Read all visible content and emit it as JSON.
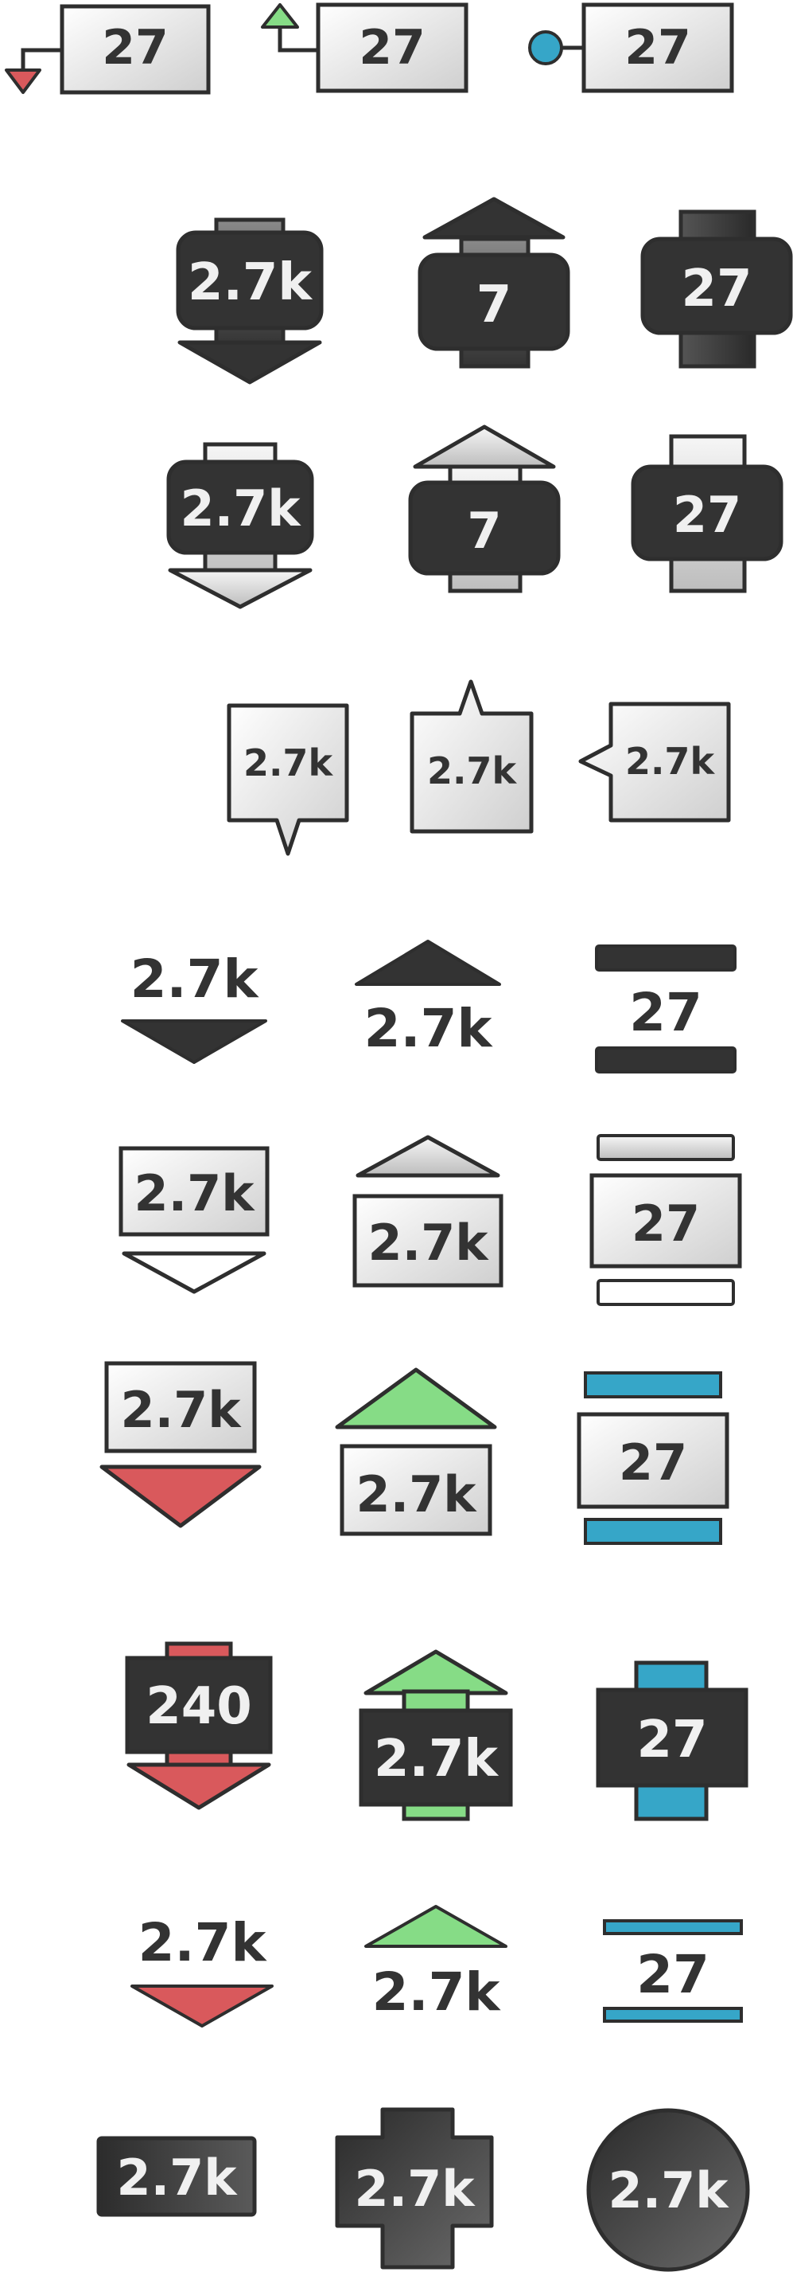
{
  "colors": {
    "stroke": "#2e2e2e",
    "dark": "#333333",
    "light_text": "#f0f0f0",
    "red": "#d9595c",
    "green": "#86dc86",
    "blue": "#36a6c8",
    "pale": "#f7f7f7"
  },
  "rows": [
    {
      "name": "row-callout-small",
      "items": [
        {
          "label": "27",
          "shape": "callout-down-arrow",
          "color": "red"
        },
        {
          "label": "27",
          "shape": "callout-up-arrow",
          "color": "green"
        },
        {
          "label": "27",
          "shape": "callout-dot",
          "color": "blue"
        }
      ]
    },
    {
      "name": "row-dark-arrows",
      "items": [
        {
          "label": "2.7k",
          "shape": "dark-arrow-down"
        },
        {
          "label": "7",
          "shape": "dark-arrow-up"
        },
        {
          "label": "27",
          "shape": "dark-neutral"
        }
      ]
    },
    {
      "name": "row-dark-arrows-light-shaft",
      "items": [
        {
          "label": "2.7k",
          "shape": "light-arrow-down"
        },
        {
          "label": "7",
          "shape": "light-arrow-up"
        },
        {
          "label": "27",
          "shape": "light-neutral"
        }
      ]
    },
    {
      "name": "row-speech-bubbles",
      "items": [
        {
          "label": "2.7k",
          "shape": "bubble-down"
        },
        {
          "label": "2.7k",
          "shape": "bubble-up"
        },
        {
          "label": "2.7k",
          "shape": "bubble-left"
        }
      ]
    },
    {
      "name": "row-plain-markers",
      "items": [
        {
          "label": "2.7k",
          "shape": "plain-down"
        },
        {
          "label": "2.7k",
          "shape": "plain-up"
        },
        {
          "label": "27",
          "shape": "plain-neutral"
        }
      ]
    },
    {
      "name": "row-boxed-outline",
      "items": [
        {
          "label": "2.7k",
          "shape": "boxed-down"
        },
        {
          "label": "2.7k",
          "shape": "boxed-up"
        },
        {
          "label": "27",
          "shape": "boxed-neutral"
        }
      ]
    },
    {
      "name": "row-boxed-colored",
      "items": [
        {
          "label": "2.7k",
          "shape": "boxed-down",
          "color": "red"
        },
        {
          "label": "2.7k",
          "shape": "boxed-up",
          "color": "green"
        },
        {
          "label": "27",
          "shape": "boxed-neutral",
          "color": "blue"
        }
      ]
    },
    {
      "name": "row-dark-colored-arrows",
      "items": [
        {
          "label": "240",
          "shape": "dark-arrow-down",
          "color": "red"
        },
        {
          "label": "2.7k",
          "shape": "dark-arrow-up",
          "color": "green"
        },
        {
          "label": "27",
          "shape": "dark-neutral",
          "color": "blue"
        }
      ]
    },
    {
      "name": "row-plain-colored",
      "items": [
        {
          "label": "2.7k",
          "shape": "plain-down",
          "color": "red"
        },
        {
          "label": "2.7k",
          "shape": "plain-up",
          "color": "green"
        },
        {
          "label": "27",
          "shape": "plain-neutral",
          "color": "blue"
        }
      ]
    },
    {
      "name": "row-dark-solids",
      "items": [
        {
          "label": "2.7k",
          "shape": "dark-rect"
        },
        {
          "label": "2.7k",
          "shape": "dark-cross"
        },
        {
          "label": "2.7k",
          "shape": "dark-circle"
        }
      ]
    }
  ]
}
